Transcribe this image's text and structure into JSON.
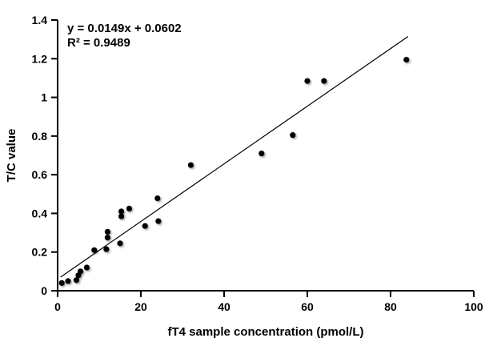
{
  "chart_data": {
    "type": "scatter",
    "title": "",
    "xlabel": "fT4 sample concentration (pmol/L)",
    "ylabel": "T/C value",
    "xlim": [
      0,
      100
    ],
    "ylim": [
      0,
      1.4
    ],
    "xticks": [
      0,
      20,
      40,
      60,
      80,
      100
    ],
    "xtick_labels": [
      "0",
      "20",
      "40",
      "60",
      "80",
      "100"
    ],
    "yticks": [
      0,
      0.2,
      0.4,
      0.6,
      0.8,
      1,
      1.2,
      1.4
    ],
    "ytick_labels": [
      "0",
      "0.2",
      "0.4",
      "0.6",
      "0.8",
      "1",
      "1.2",
      "1.4"
    ],
    "grid": false,
    "legend": null,
    "marker_color": "#000000",
    "line_color": "#000000",
    "points": [
      [
        1.0,
        0.04
      ],
      [
        2.5,
        0.05
      ],
      [
        4.5,
        0.055
      ],
      [
        5.0,
        0.08
      ],
      [
        5.5,
        0.1
      ],
      [
        7.0,
        0.12
      ],
      [
        8.8,
        0.21
      ],
      [
        11.7,
        0.215
      ],
      [
        12.0,
        0.275
      ],
      [
        12.0,
        0.305
      ],
      [
        15.0,
        0.245
      ],
      [
        15.3,
        0.385
      ],
      [
        15.3,
        0.41
      ],
      [
        17.2,
        0.425
      ],
      [
        21.0,
        0.335
      ],
      [
        24.2,
        0.36
      ],
      [
        24.0,
        0.478
      ],
      [
        32.0,
        0.65
      ],
      [
        49.0,
        0.71
      ],
      [
        56.5,
        0.805
      ],
      [
        60.0,
        1.085
      ],
      [
        64.0,
        1.085
      ],
      [
        83.8,
        1.195
      ]
    ],
    "trendline": {
      "slope": 0.0149,
      "intercept": 0.0602,
      "x_start": 0.7,
      "x_end": 84.2,
      "equation_label": "y = 0.0149x + 0.0602",
      "r2_label": "R² = 0.9489"
    }
  }
}
